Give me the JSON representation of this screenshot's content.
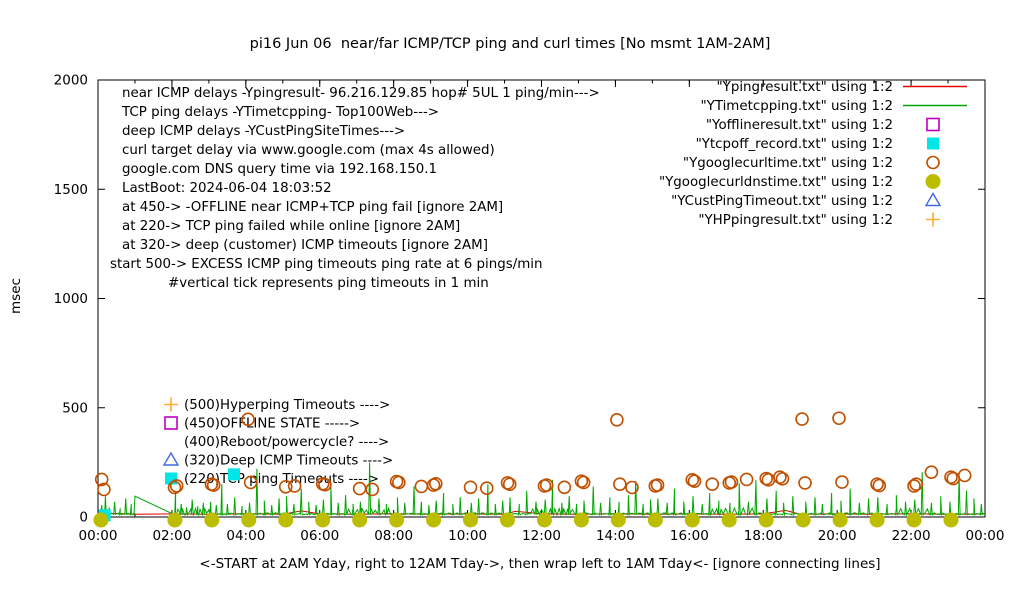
{
  "title": "pi16 Jun 06  near/far ICMP/TCP ping and curl times [No msmt 1AM-2AM]",
  "chart_data": {
    "type": "line",
    "xlabel": "<-START at 2AM Yday, right to 12AM Tday->, then wrap left to 1AM Tday<- [ignore connecting lines]",
    "ylabel": "msec",
    "xlim": [
      0,
      24
    ],
    "ylim": [
      0,
      2000
    ],
    "grid": false,
    "legend_position": "top-right",
    "x_major_ticks": [
      {
        "t": 0,
        "label": "00:00"
      },
      {
        "t": 2,
        "label": "02:00"
      },
      {
        "t": 4,
        "label": "04:00"
      },
      {
        "t": 6,
        "label": "06:00"
      },
      {
        "t": 8,
        "label": "08:00"
      },
      {
        "t": 10,
        "label": "10:00"
      },
      {
        "t": 12,
        "label": "12:00"
      },
      {
        "t": 14,
        "label": "14:00"
      },
      {
        "t": 16,
        "label": "16:00"
      },
      {
        "t": 18,
        "label": "18:00"
      },
      {
        "t": 20,
        "label": "20:00"
      },
      {
        "t": 22,
        "label": "22:00"
      },
      {
        "t": 24,
        "label": "00:00"
      }
    ],
    "x_minor_step": 1,
    "y_ticks": [
      {
        "v": 0,
        "label": "0"
      },
      {
        "v": 500,
        "label": "500"
      },
      {
        "v": 1000,
        "label": "1000"
      },
      {
        "v": 1500,
        "label": "1500"
      },
      {
        "v": 2000,
        "label": "2000"
      }
    ],
    "notes": [
      "near ICMP delays -Ypingresult- 96.216.129.85 hop# 5UL 1 ping/min--->",
      "TCP ping delays -YTimetcpping- Top100Web--->",
      "deep ICMP delays -YCustPingSiteTimes--->",
      "curl target delay via www.google.com (max 4s allowed)",
      "google.com DNS query time via 192.168.150.1",
      "LastBoot: 2024-06-04 18:03:52",
      "at 450-> -OFFLINE near ICMP+TCP ping fail [ignore 2AM]",
      "at 220-> TCP ping failed while online [ignore 2AM]",
      "at 320-> deep (customer) ICMP timeouts [ignore 2AM]",
      "start 500-> EXCESS ICMP ping timeouts ping rate at 6 pings/min",
      "#vertical tick represents ping timeouts in 1 min"
    ],
    "callouts": [
      {
        "marker": "plus",
        "color": "#ffaa33",
        "value": 500,
        "text": "(500)Hyperping Timeouts ---->"
      },
      {
        "marker": "square-open",
        "color": "#bf00bf",
        "value": 450,
        "text": "(450)OFFLINE STATE ----->"
      },
      {
        "marker": "none",
        "color": "#000000",
        "value": 400,
        "text": "(400)Reboot/powercycle? ---->"
      },
      {
        "marker": "triangle-open",
        "color": "#4169e1",
        "value": 320,
        "text": "(320)Deep ICMP Timeouts ---->"
      },
      {
        "marker": "square-filled",
        "color": "#00e5e5",
        "value": 220,
        "text": "(220)TCP ping Timeouts ---->"
      }
    ],
    "series": [
      {
        "key": "Ypingresult",
        "name": "\"Ypingresult.txt\" using 1:2",
        "type": "line",
        "color": "#e00000",
        "points": [
          [
            0,
            13
          ],
          [
            0.5,
            16
          ],
          [
            1,
            13
          ],
          [
            2.06,
            14
          ],
          [
            3,
            13
          ],
          [
            4,
            15
          ],
          [
            5,
            13
          ],
          [
            5.5,
            28
          ],
          [
            6,
            14
          ],
          [
            7,
            13
          ],
          [
            8,
            15
          ],
          [
            9,
            13
          ],
          [
            10,
            14
          ],
          [
            11,
            13
          ],
          [
            11.3,
            26
          ],
          [
            12,
            14
          ],
          [
            13,
            13
          ],
          [
            14,
            15
          ],
          [
            15,
            13
          ],
          [
            16,
            14
          ],
          [
            17,
            13
          ],
          [
            18,
            14
          ],
          [
            18.6,
            30
          ],
          [
            19,
            13
          ],
          [
            20,
            14
          ],
          [
            21,
            13
          ],
          [
            22,
            15
          ],
          [
            23,
            13
          ],
          [
            24,
            14
          ]
        ]
      },
      {
        "key": "YTimetcpping",
        "name": "\"YTimetcpping.txt\" using 1:2",
        "type": "spike-line",
        "color": "#00a800",
        "baseline": 14,
        "noise": 9,
        "gap": [
          1.0,
          2.06
        ],
        "spikes": [
          [
            0.1,
            55
          ],
          [
            0.2,
            95
          ],
          [
            0.3,
            45
          ],
          [
            0.45,
            70
          ],
          [
            0.6,
            40
          ],
          [
            0.75,
            85
          ],
          [
            0.9,
            60
          ],
          [
            1.0,
            95
          ],
          [
            2.1,
            120
          ],
          [
            2.25,
            60
          ],
          [
            2.4,
            45
          ],
          [
            2.55,
            80
          ],
          [
            2.7,
            50
          ],
          [
            2.85,
            65
          ],
          [
            3.05,
            70
          ],
          [
            3.2,
            55
          ],
          [
            3.35,
            150
          ],
          [
            3.5,
            60
          ],
          [
            3.7,
            90
          ],
          [
            3.9,
            50
          ],
          [
            4.1,
            65
          ],
          [
            4.3,
            220
          ],
          [
            4.5,
            75
          ],
          [
            4.7,
            55
          ],
          [
            4.9,
            85
          ],
          [
            5.1,
            95
          ],
          [
            5.3,
            60
          ],
          [
            5.5,
            130
          ],
          [
            5.7,
            70
          ],
          [
            5.9,
            55
          ],
          [
            6.1,
            80
          ],
          [
            6.3,
            150
          ],
          [
            6.5,
            65
          ],
          [
            6.7,
            100
          ],
          [
            6.9,
            60
          ],
          [
            7.1,
            70
          ],
          [
            7.35,
            250
          ],
          [
            7.6,
            85
          ],
          [
            7.8,
            60
          ],
          [
            8.1,
            90
          ],
          [
            8.3,
            65
          ],
          [
            8.55,
            140
          ],
          [
            8.75,
            70
          ],
          [
            8.95,
            55
          ],
          [
            9.15,
            75
          ],
          [
            9.35,
            110
          ],
          [
            9.6,
            60
          ],
          [
            9.8,
            90
          ],
          [
            10.1,
            65
          ],
          [
            10.3,
            85
          ],
          [
            10.55,
            150
          ],
          [
            10.75,
            60
          ],
          [
            10.95,
            75
          ],
          [
            11.15,
            90
          ],
          [
            11.4,
            60
          ],
          [
            11.6,
            120
          ],
          [
            11.85,
            70
          ],
          [
            12.1,
            80
          ],
          [
            12.3,
            170
          ],
          [
            12.55,
            65
          ],
          [
            12.75,
            95
          ],
          [
            12.95,
            60
          ],
          [
            13.15,
            75
          ],
          [
            13.4,
            140
          ],
          [
            13.6,
            65
          ],
          [
            13.85,
            90
          ],
          [
            14.1,
            70
          ],
          [
            14.35,
            100
          ],
          [
            14.55,
            165
          ],
          [
            14.75,
            60
          ],
          [
            14.95,
            80
          ],
          [
            15.15,
            85
          ],
          [
            15.4,
            65
          ],
          [
            15.6,
            130
          ],
          [
            15.85,
            70
          ],
          [
            16.1,
            95
          ],
          [
            16.35,
            60
          ],
          [
            16.55,
            110
          ],
          [
            16.8,
            75
          ],
          [
            17.1,
            65
          ],
          [
            17.35,
            155
          ],
          [
            17.6,
            70
          ],
          [
            17.8,
            170
          ],
          [
            18.1,
            85
          ],
          [
            18.35,
            120
          ],
          [
            18.55,
            65
          ],
          [
            18.8,
            95
          ],
          [
            19.15,
            70
          ],
          [
            19.4,
            90
          ],
          [
            19.6,
            60
          ],
          [
            19.85,
            110
          ],
          [
            20.1,
            75
          ],
          [
            20.35,
            130
          ],
          [
            20.6,
            65
          ],
          [
            20.85,
            85
          ],
          [
            21.1,
            90
          ],
          [
            21.35,
            60
          ],
          [
            21.6,
            100
          ],
          [
            21.85,
            70
          ],
          [
            22.1,
            80
          ],
          [
            22.3,
            205
          ],
          [
            22.55,
            65
          ],
          [
            22.8,
            95
          ],
          [
            23.05,
            70
          ],
          [
            23.3,
            190
          ],
          [
            23.5,
            120
          ],
          [
            23.7,
            85
          ],
          [
            23.9,
            60
          ]
        ]
      },
      {
        "key": "Yofflineresult",
        "name": "\"Yofflineresult.txt\" using 1:2",
        "type": "square-open",
        "color": "#bf00bf",
        "points": []
      },
      {
        "key": "Ytcpoff_record",
        "name": "\"Ytcpoff_record.txt\" using 1:2",
        "type": "square-filled",
        "color": "#00e5e5",
        "points": [
          [
            0.18,
            8
          ],
          [
            3.68,
            195
          ]
        ]
      },
      {
        "key": "Ygooglecurltime",
        "name": "\"Ygooglecurltime.txt\" using 1:2",
        "type": "circle-open",
        "color": "#c05000",
        "points": [
          [
            0.1,
            172
          ],
          [
            0.16,
            126
          ],
          [
            2.07,
            135
          ],
          [
            2.13,
            142
          ],
          [
            3.07,
            150
          ],
          [
            3.13,
            146
          ],
          [
            4.06,
            447
          ],
          [
            4.13,
            158
          ],
          [
            5.08,
            138
          ],
          [
            5.32,
            142
          ],
          [
            6.08,
            152
          ],
          [
            6.14,
            148
          ],
          [
            7.08,
            130
          ],
          [
            7.42,
            126
          ],
          [
            8.08,
            162
          ],
          [
            8.14,
            158
          ],
          [
            8.75,
            140
          ],
          [
            9.08,
            146
          ],
          [
            9.14,
            152
          ],
          [
            10.08,
            136
          ],
          [
            10.52,
            132
          ],
          [
            11.08,
            156
          ],
          [
            11.14,
            150
          ],
          [
            12.08,
            142
          ],
          [
            12.14,
            146
          ],
          [
            12.62,
            136
          ],
          [
            13.08,
            164
          ],
          [
            13.14,
            158
          ],
          [
            14.04,
            445
          ],
          [
            14.12,
            150
          ],
          [
            14.45,
            135
          ],
          [
            15.08,
            142
          ],
          [
            15.14,
            146
          ],
          [
            16.08,
            170
          ],
          [
            16.14,
            164
          ],
          [
            16.62,
            150
          ],
          [
            17.08,
            156
          ],
          [
            17.14,
            160
          ],
          [
            17.55,
            172
          ],
          [
            18.08,
            176
          ],
          [
            18.14,
            170
          ],
          [
            18.45,
            182
          ],
          [
            18.52,
            175
          ],
          [
            19.05,
            448
          ],
          [
            19.13,
            156
          ],
          [
            20.05,
            452
          ],
          [
            20.13,
            160
          ],
          [
            21.08,
            150
          ],
          [
            21.14,
            144
          ],
          [
            22.08,
            142
          ],
          [
            22.14,
            150
          ],
          [
            22.55,
            205
          ],
          [
            23.08,
            182
          ],
          [
            23.14,
            176
          ],
          [
            23.45,
            190
          ]
        ]
      },
      {
        "key": "Ygooglecurldnstime",
        "name": "\"Ygooglecurldnstime.txt\" using 1:2",
        "type": "circle-filled",
        "color": "#bdbd00",
        "points": [
          [
            0.08,
            0
          ],
          [
            2.08,
            0
          ],
          [
            3.08,
            0
          ],
          [
            4.08,
            0
          ],
          [
            5.08,
            0
          ],
          [
            6.08,
            0
          ],
          [
            7.08,
            0
          ],
          [
            8.08,
            0
          ],
          [
            9.08,
            0
          ],
          [
            10.08,
            0
          ],
          [
            11.08,
            0
          ],
          [
            12.08,
            0
          ],
          [
            13.08,
            0
          ],
          [
            14.08,
            0
          ],
          [
            15.08,
            0
          ],
          [
            16.08,
            0
          ],
          [
            17.08,
            0
          ],
          [
            18.08,
            0
          ],
          [
            19.08,
            0
          ],
          [
            20.08,
            0
          ],
          [
            21.08,
            0
          ],
          [
            22.08,
            0
          ],
          [
            23.08,
            0
          ]
        ]
      },
      {
        "key": "YCustPingTimeout",
        "name": "\"YCustPingTimeout.txt\" using 1:2",
        "type": "triangle-open",
        "color": "#4169e1",
        "points": []
      },
      {
        "key": "YHPpingresult",
        "name": "\"YHPpingresult.txt\" using 1:2",
        "type": "plus",
        "color": "#ffaa33",
        "points": []
      }
    ]
  }
}
